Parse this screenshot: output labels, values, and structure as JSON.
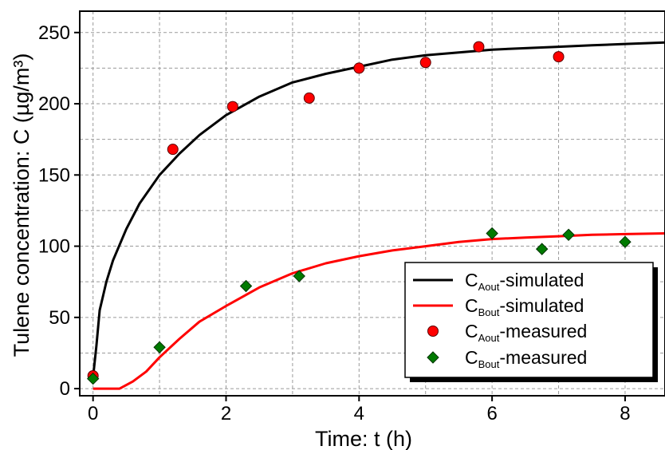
{
  "chart_data": {
    "type": "line",
    "xlabel": "Time: t (h)",
    "ylabel": "Tulene concentration: C (µg/m³)",
    "xlim": [
      -0.2,
      8.6
    ],
    "ylim": [
      -5,
      265
    ],
    "x_ticks": [
      0,
      2,
      4,
      6,
      8
    ],
    "y_ticks": [
      0,
      50,
      100,
      150,
      200,
      250
    ],
    "x_minor_grid": [
      1,
      3,
      5,
      7
    ],
    "y_minor_grid": [
      25,
      75,
      125,
      175,
      225
    ],
    "grid": true,
    "legend_position": "bottom-right",
    "series": [
      {
        "name": "C_Aout-simulated",
        "display": {
          "base": "C",
          "sub": "Aout",
          "suffix": "-simulated"
        },
        "kind": "line",
        "color": "#000000",
        "x": [
          0,
          0.05,
          0.1,
          0.2,
          0.3,
          0.5,
          0.7,
          1.0,
          1.3,
          1.6,
          2.0,
          2.5,
          3.0,
          3.5,
          4.0,
          4.5,
          5.0,
          5.5,
          6.0,
          6.5,
          7.0,
          7.5,
          8.0,
          8.6
        ],
        "y": [
          8,
          30,
          55,
          75,
          90,
          112,
          130,
          150,
          165,
          178,
          192,
          205,
          215,
          221,
          226,
          231,
          234,
          236,
          238,
          239,
          240,
          241,
          242,
          243
        ]
      },
      {
        "name": "C_Bout-simulated",
        "display": {
          "base": "C",
          "sub": "Bout",
          "suffix": "-simulated"
        },
        "kind": "line",
        "color": "#ff0000",
        "x": [
          0,
          0.2,
          0.4,
          0.6,
          0.8,
          1.0,
          1.3,
          1.6,
          2.0,
          2.5,
          3.0,
          3.5,
          4.0,
          4.5,
          5.0,
          5.5,
          6.0,
          6.5,
          7.0,
          7.5,
          8.0,
          8.6
        ],
        "y": [
          0,
          0,
          0,
          5,
          12,
          22,
          35,
          47,
          58,
          71,
          81,
          88,
          93,
          97,
          100,
          103,
          105,
          106,
          107,
          108,
          108.5,
          109
        ]
      },
      {
        "name": "C_Aout-measured",
        "display": {
          "base": "C",
          "sub": "Aout",
          "suffix": "-measured"
        },
        "kind": "scatter",
        "marker": "circle",
        "color": "#ff0000",
        "x": [
          0,
          1.2,
          2.1,
          3.25,
          4.0,
          5.0,
          5.8,
          7.0
        ],
        "y": [
          9,
          168,
          198,
          204,
          225,
          229,
          240,
          233
        ]
      },
      {
        "name": "C_Bout-measured",
        "display": {
          "base": "C",
          "sub": "Bout",
          "suffix": "-measured"
        },
        "kind": "scatter",
        "marker": "diamond",
        "color": "#007a00",
        "x": [
          0,
          1.0,
          2.3,
          3.1,
          6.0,
          6.75,
          7.15,
          8.0
        ],
        "y": [
          7,
          29,
          72,
          79,
          109,
          98,
          108,
          103
        ]
      }
    ]
  }
}
